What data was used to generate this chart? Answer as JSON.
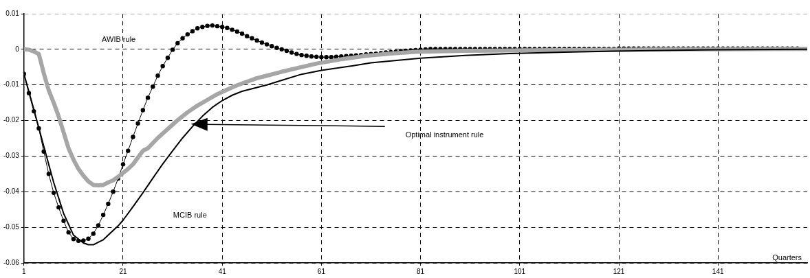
{
  "chart_data": {
    "type": "line",
    "xlabel": "Quarters",
    "x": [
      1,
      2,
      3,
      4,
      5,
      6,
      7,
      8,
      9,
      10,
      11,
      12,
      13,
      14,
      15,
      16,
      17,
      18,
      19,
      20,
      21,
      22,
      23,
      24,
      25,
      26,
      27,
      28,
      29,
      30,
      31,
      32,
      33,
      34,
      35,
      36,
      37,
      38,
      39,
      40,
      41,
      42,
      43,
      44,
      45,
      46,
      47,
      48,
      49,
      50,
      51,
      52,
      53,
      54,
      55,
      56,
      57,
      58,
      59,
      60,
      61,
      62,
      63,
      64,
      65,
      66,
      67,
      68,
      69,
      70,
      71,
      72,
      73,
      74,
      75,
      76,
      77,
      78,
      79,
      80,
      81,
      82,
      83,
      84,
      85,
      86,
      87,
      88,
      89,
      90,
      91,
      92,
      93,
      94,
      95,
      96,
      97,
      98,
      99,
      100,
      101,
      102,
      103,
      104,
      105,
      106,
      107,
      108,
      109,
      110,
      111,
      112,
      113,
      114,
      115,
      116,
      117,
      118,
      119,
      120,
      121,
      122,
      123,
      124,
      125,
      126,
      127,
      128,
      129,
      130,
      131,
      132,
      133,
      134,
      135,
      136,
      137,
      138,
      139,
      140,
      141,
      142,
      143,
      144,
      145,
      146,
      147,
      148,
      149,
      150,
      151,
      152,
      153,
      154,
      155,
      156,
      157
    ],
    "series": [
      {
        "color": "#000000",
        "marker": "circle",
        "values": [
          -0.0069,
          -0.0123,
          -0.0174,
          -0.0222,
          -0.0287,
          -0.035,
          -0.0403,
          -0.0444,
          -0.0482,
          -0.0514,
          -0.0533,
          -0.0538,
          -0.0537,
          -0.0532,
          -0.0518,
          -0.0495,
          -0.0465,
          -0.0434,
          -0.04,
          -0.0363,
          -0.0323,
          -0.0285,
          -0.0246,
          -0.0208,
          -0.0171,
          -0.0136,
          -0.0105,
          -0.0074,
          -0.0047,
          -0.0024,
          -0.0001,
          0.0017,
          0.0031,
          0.0042,
          0.0051,
          0.0059,
          0.0063,
          0.0066,
          0.0067,
          0.0065,
          0.0063,
          0.006,
          0.0055,
          0.005,
          0.0044,
          0.0037,
          0.0031,
          0.0025,
          0.0019,
          0.0014,
          0.0009,
          0.0004,
          0,
          -0.0004,
          -0.0009,
          -0.0013,
          -0.0016,
          -0.0018,
          -0.002,
          -0.0021,
          -0.0022,
          -0.0022,
          -0.0022,
          -0.0021,
          -0.002,
          -0.0019,
          -0.0018,
          -0.0017,
          -0.0016,
          -0.0014,
          -0.0013,
          -0.0012,
          -0.0011,
          -0.0009,
          -0.0008,
          -0.0007,
          -0.0005,
          -0.0004,
          -0.0003,
          -0.0002,
          -0.0001,
          0,
          0.0001,
          0.0001,
          0.0001,
          0.0001,
          0.0001,
          0.0001,
          0.0001,
          0.0001,
          0.0001,
          0.0001,
          0.0001,
          0.0001,
          0.0001,
          0.0001,
          0.0001,
          0.0001,
          0.0001,
          0.0001,
          0.0001,
          0.0001,
          0.0001,
          0.0001,
          0.0001,
          0.0001,
          0.0001,
          0.0001,
          0.0001,
          0.0001,
          0.0001,
          0.0001,
          0.0001,
          0.0001,
          0.0001,
          0.0001,
          0.0001,
          0.0001,
          0.0001,
          0.0001,
          0.0002,
          0.0002,
          0.0002,
          0.0002,
          0.0002,
          0.0002,
          0.0002,
          0.0002,
          0.0002,
          0.0002,
          0.0002,
          0.0002,
          0.0002,
          0.0002,
          0.0002,
          0.0002,
          0.0002,
          0.0002,
          0.0002,
          0.0002,
          0.0002,
          0.0002,
          0.0002,
          0.0002,
          0.0002,
          0.0002,
          0.0002,
          0.0002,
          0.0002,
          0.0002,
          0.0002,
          0.0002,
          0.0002,
          0.0002,
          0.0002,
          0.0002,
          0.0002
        ]
      },
      {
        "color": "#a6a6a6",
        "marker": "none",
        "x": [
          1,
          2,
          3,
          4,
          5,
          6,
          7,
          8,
          9,
          10,
          11,
          12,
          13,
          14,
          15,
          16,
          17,
          18,
          19,
          20,
          21,
          22,
          23,
          24,
          25,
          26,
          28,
          30,
          32,
          34,
          36,
          38,
          40,
          42,
          44,
          46,
          48,
          50,
          53,
          56,
          60,
          65,
          70,
          75,
          80,
          90,
          100,
          110,
          120,
          130,
          140,
          159
        ],
        "values": [
          0,
          -0.0001,
          -0.0006,
          -0.0013,
          -0.0067,
          -0.0115,
          -0.015,
          -0.0188,
          -0.0233,
          -0.0278,
          -0.031,
          -0.0336,
          -0.0355,
          -0.0371,
          -0.0381,
          -0.0382,
          -0.0381,
          -0.0374,
          -0.0368,
          -0.0358,
          -0.0347,
          -0.0336,
          -0.0323,
          -0.0304,
          -0.0285,
          -0.0278,
          -0.0249,
          -0.0224,
          -0.0199,
          -0.0177,
          -0.0158,
          -0.0142,
          -0.0126,
          -0.0113,
          -0.0101,
          -0.0091,
          -0.0081,
          -0.0074,
          -0.0063,
          -0.0053,
          -0.004,
          -0.0028,
          -0.0018,
          -0.0012,
          -0.0007,
          -0.0004,
          -0.0003,
          -0.0002,
          -0.0001,
          0,
          0,
          0.0001
        ]
      },
      {
        "color": "#000000",
        "marker": "none",
        "x": [
          1,
          3,
          5,
          7,
          9,
          11,
          13,
          14,
          15,
          16,
          17,
          19,
          20,
          21,
          23,
          25,
          27,
          29,
          31,
          33,
          35,
          37,
          39,
          41,
          43,
          45,
          50,
          53,
          57,
          61,
          67,
          71,
          81,
          90,
          99,
          110,
          120,
          130,
          140,
          159
        ],
        "values": [
          -0.0069,
          -0.0169,
          -0.0272,
          -0.0374,
          -0.0461,
          -0.0522,
          -0.0544,
          -0.0549,
          -0.0549,
          -0.0542,
          -0.0535,
          -0.0509,
          -0.0496,
          -0.048,
          -0.0442,
          -0.0403,
          -0.0362,
          -0.0322,
          -0.0285,
          -0.0249,
          -0.0217,
          -0.0188,
          -0.0163,
          -0.0144,
          -0.0129,
          -0.0118,
          -0.01,
          -0.0087,
          -0.007,
          -0.0059,
          -0.0047,
          -0.0038,
          -0.0025,
          -0.0017,
          -0.0012,
          -0.0008,
          -0.0005,
          -0.0003,
          -0.0001,
          0
        ]
      }
    ],
    "xlim": [
      1,
      159
    ],
    "xticks": [
      1,
      21,
      41,
      61,
      81,
      101,
      121,
      141
    ],
    "ylim": [
      -0.06,
      0.01
    ],
    "yticks": [
      -0.06,
      -0.05,
      -0.04,
      -0.03,
      -0.02,
      -0.01,
      0,
      0.01
    ],
    "grid": true,
    "legend": false,
    "line_style": "solid",
    "annotations": [
      "AWIB rule",
      "MCIB rule",
      "Optimal instrument rule"
    ]
  }
}
